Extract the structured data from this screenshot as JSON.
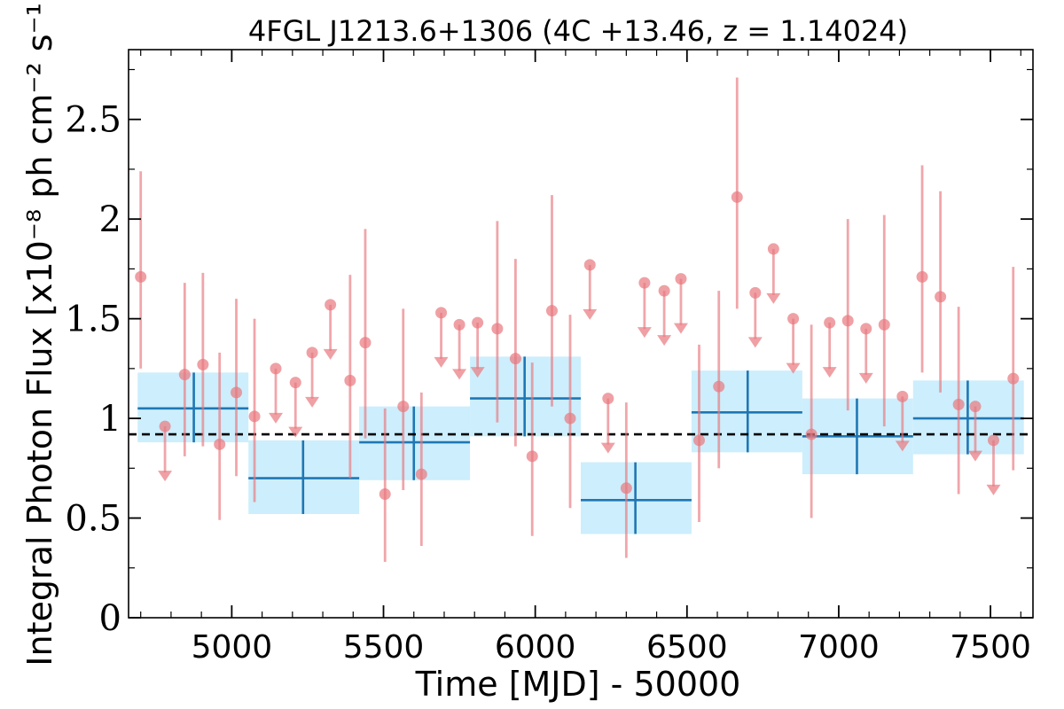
{
  "chart_data": {
    "type": "scatter",
    "title": "4FGL J1213.6+1306 (4C +13.46, z = 1.14024)",
    "xlabel": "Time [MJD] - 50000",
    "ylabel": "Integral Photon Flux [x10⁻⁸ ph cm⁻² s⁻¹]",
    "xlim": [
      4660,
      7640
    ],
    "ylim": [
      0,
      2.85
    ],
    "x_ticks": [
      5000,
      5500,
      6000,
      6500,
      7000,
      7500
    ],
    "x_tick_labels": [
      "5000",
      "5500",
      "6000",
      "6500",
      "7000",
      "7500"
    ],
    "y_ticks": [
      0,
      0.5,
      1,
      1.5,
      2,
      2.5
    ],
    "y_tick_labels": [
      "0",
      "0.5",
      "1",
      "1.5",
      "2",
      "2.5"
    ],
    "grid": false,
    "mean_flux": 0.92,
    "colors": {
      "points": "#e8777d",
      "bins": "#1f77b4",
      "bin_fill": "#cdeefc",
      "mean_line": "#000000"
    },
    "series": [
      {
        "kind": "detection",
        "points": [
          {
            "x": 4700,
            "y": 1.71,
            "lo": 1.25,
            "hi": 2.24
          },
          {
            "x": 4845,
            "y": 1.22,
            "lo": 0.81,
            "hi": 1.68
          },
          {
            "x": 4905,
            "y": 1.27,
            "lo": 0.86,
            "hi": 1.73
          },
          {
            "x": 4960,
            "y": 0.87,
            "lo": 0.49,
            "hi": 1.33
          },
          {
            "x": 5015,
            "y": 1.13,
            "lo": 0.71,
            "hi": 1.6
          },
          {
            "x": 5075,
            "y": 1.01,
            "lo": 0.58,
            "hi": 1.5
          },
          {
            "x": 5390,
            "y": 1.19,
            "lo": 0.7,
            "hi": 1.72
          },
          {
            "x": 5440,
            "y": 1.38,
            "lo": 0.9,
            "hi": 1.95
          },
          {
            "x": 5505,
            "y": 0.62,
            "lo": 0.28,
            "hi": 1.05
          },
          {
            "x": 5565,
            "y": 1.06,
            "lo": 0.64,
            "hi": 1.55
          },
          {
            "x": 5625,
            "y": 0.72,
            "lo": 0.36,
            "hi": 1.13
          },
          {
            "x": 5875,
            "y": 1.45,
            "lo": 0.98,
            "hi": 1.99
          },
          {
            "x": 5935,
            "y": 1.3,
            "lo": 0.86,
            "hi": 1.8
          },
          {
            "x": 5990,
            "y": 0.81,
            "lo": 0.41,
            "hi": 1.28
          },
          {
            "x": 6055,
            "y": 1.54,
            "lo": 1.06,
            "hi": 2.12
          },
          {
            "x": 6115,
            "y": 1.0,
            "lo": 0.55,
            "hi": 1.52
          },
          {
            "x": 6300,
            "y": 0.65,
            "lo": 0.3,
            "hi": 1.08
          },
          {
            "x": 6540,
            "y": 0.89,
            "lo": 0.48,
            "hi": 1.37
          },
          {
            "x": 6605,
            "y": 1.16,
            "lo": 0.75,
            "hi": 1.64
          },
          {
            "x": 6665,
            "y": 2.11,
            "lo": 1.55,
            "hi": 2.71
          },
          {
            "x": 6910,
            "y": 0.92,
            "lo": 0.5,
            "hi": 1.47
          },
          {
            "x": 7030,
            "y": 1.49,
            "lo": 1.04,
            "hi": 2.0
          },
          {
            "x": 7150,
            "y": 1.47,
            "lo": 0.96,
            "hi": 2.02
          },
          {
            "x": 7275,
            "y": 1.71,
            "lo": 1.23,
            "hi": 2.27
          },
          {
            "x": 7335,
            "y": 1.61,
            "lo": 1.13,
            "hi": 2.14
          },
          {
            "x": 7395,
            "y": 1.07,
            "lo": 0.62,
            "hi": 1.56
          },
          {
            "x": 7575,
            "y": 1.2,
            "lo": 0.74,
            "hi": 1.76
          }
        ]
      },
      {
        "kind": "upper_limit",
        "points": [
          {
            "x": 4780,
            "y": 0.96
          },
          {
            "x": 5145,
            "y": 1.25
          },
          {
            "x": 5210,
            "y": 1.18
          },
          {
            "x": 5265,
            "y": 1.33
          },
          {
            "x": 5325,
            "y": 1.57
          },
          {
            "x": 5690,
            "y": 1.53
          },
          {
            "x": 5750,
            "y": 1.47
          },
          {
            "x": 5810,
            "y": 1.48
          },
          {
            "x": 6180,
            "y": 1.77
          },
          {
            "x": 6240,
            "y": 1.1
          },
          {
            "x": 6360,
            "y": 1.68
          },
          {
            "x": 6425,
            "y": 1.64
          },
          {
            "x": 6480,
            "y": 1.7
          },
          {
            "x": 6725,
            "y": 1.63
          },
          {
            "x": 6785,
            "y": 1.85
          },
          {
            "x": 6850,
            "y": 1.5
          },
          {
            "x": 6970,
            "y": 1.48
          },
          {
            "x": 7090,
            "y": 1.45
          },
          {
            "x": 7210,
            "y": 1.11
          },
          {
            "x": 7450,
            "y": 1.06
          },
          {
            "x": 7510,
            "y": 0.89
          }
        ]
      },
      {
        "kind": "binned",
        "points": [
          {
            "x0": 4690,
            "x1": 5055,
            "xc": 4875,
            "y": 1.05,
            "ylo": 0.88,
            "yhi": 1.23
          },
          {
            "x0": 5055,
            "x1": 5420,
            "xc": 5235,
            "y": 0.7,
            "ylo": 0.52,
            "yhi": 0.89
          },
          {
            "x0": 5420,
            "x1": 5785,
            "xc": 5600,
            "y": 0.88,
            "ylo": 0.69,
            "yhi": 1.06
          },
          {
            "x0": 5785,
            "x1": 6150,
            "xc": 5965,
            "y": 1.1,
            "ylo": 0.91,
            "yhi": 1.31
          },
          {
            "x0": 6150,
            "x1": 6515,
            "xc": 6330,
            "y": 0.59,
            "ylo": 0.42,
            "yhi": 0.78
          },
          {
            "x0": 6515,
            "x1": 6880,
            "xc": 6700,
            "y": 1.03,
            "ylo": 0.83,
            "yhi": 1.24
          },
          {
            "x0": 6880,
            "x1": 7245,
            "xc": 7060,
            "y": 0.91,
            "ylo": 0.72,
            "yhi": 1.1
          },
          {
            "x0": 7245,
            "x1": 7610,
            "xc": 7425,
            "y": 1.0,
            "ylo": 0.82,
            "yhi": 1.19
          }
        ]
      }
    ]
  }
}
